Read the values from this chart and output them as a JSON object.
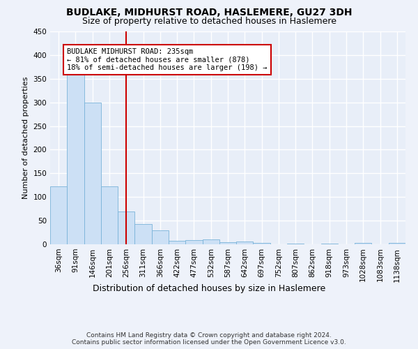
{
  "title": "BUDLAKE, MIDHURST ROAD, HASLEMERE, GU27 3DH",
  "subtitle": "Size of property relative to detached houses in Haslemere",
  "xlabel": "Distribution of detached houses by size in Haslemere",
  "ylabel": "Number of detached properties",
  "bar_color": "#cce0f5",
  "bar_edge_color": "#7ab3d9",
  "vline_color": "#cc0000",
  "vline_x_index": 4,
  "annotation_text": "BUDLAKE MIDHURST ROAD: 235sqm\n← 81% of detached houses are smaller (878)\n18% of semi-detached houses are larger (198) →",
  "annotation_box_color": "#ffffff",
  "annotation_box_edge": "#cc0000",
  "categories": [
    "36sqm",
    "91sqm",
    "146sqm",
    "201sqm",
    "256sqm",
    "311sqm",
    "366sqm",
    "422sqm",
    "477sqm",
    "532sqm",
    "587sqm",
    "642sqm",
    "697sqm",
    "752sqm",
    "807sqm",
    "862sqm",
    "918sqm",
    "973sqm",
    "1028sqm",
    "1083sqm",
    "1138sqm"
  ],
  "values": [
    123,
    375,
    300,
    123,
    70,
    43,
    29,
    8,
    9,
    10,
    5,
    6,
    3,
    0,
    2,
    0,
    2,
    0,
    3,
    0,
    3
  ],
  "ylim": [
    0,
    450
  ],
  "yticks": [
    0,
    50,
    100,
    150,
    200,
    250,
    300,
    350,
    400,
    450
  ],
  "footer": "Contains HM Land Registry data © Crown copyright and database right 2024.\nContains public sector information licensed under the Open Government Licence v3.0.",
  "bg_color": "#eef2fa",
  "plot_bg_color": "#e8eef8",
  "grid_color": "#ffffff",
  "title_fontsize": 10,
  "subtitle_fontsize": 9,
  "xlabel_fontsize": 9,
  "ylabel_fontsize": 8,
  "tick_fontsize": 7.5,
  "footer_fontsize": 6.5,
  "annot_fontsize": 7.5
}
